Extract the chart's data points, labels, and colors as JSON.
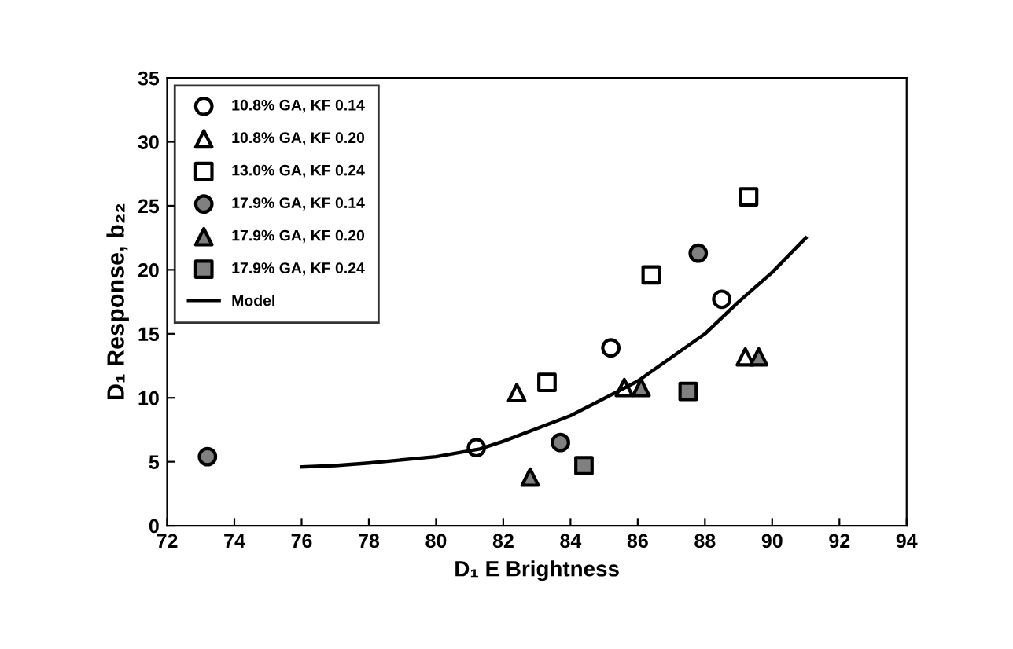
{
  "chart_data": {
    "type": "scatter",
    "xlabel": "D₁ E Brightness",
    "ylabel": "D₁ Response, b₂₂",
    "xlim": [
      72,
      94
    ],
    "xticks": [
      72,
      74,
      76,
      78,
      80,
      82,
      84,
      86,
      88,
      90,
      92,
      94
    ],
    "ylim": [
      0,
      35
    ],
    "yticks": [
      0,
      5,
      10,
      15,
      20,
      25,
      30,
      35
    ],
    "grid": false,
    "legend": "top left",
    "series": [
      {
        "name": "10.8% GA, KF 0.14",
        "marker": "circle",
        "color": "#000000",
        "x": [
          81.2,
          85.2,
          88.5
        ],
        "values": [
          6.1,
          13.9,
          17.7
        ]
      },
      {
        "name": "10.8% GA, KF 0.20",
        "marker": "triangle",
        "color": "#000000",
        "x": [
          82.4,
          85.6,
          89.2
        ],
        "values": [
          10.4,
          10.8,
          13.2
        ]
      },
      {
        "name": "13.0% GA, KF 0.24",
        "marker": "square",
        "color": "#000000",
        "x": [
          83.3,
          86.4,
          89.3
        ],
        "values": [
          11.2,
          19.6,
          25.7
        ]
      },
      {
        "name": "17.9% GA, KF 0.14",
        "marker": "circle",
        "color": "#808080",
        "x": [
          73.2,
          83.7,
          87.8
        ],
        "values": [
          5.4,
          6.5,
          21.3
        ]
      },
      {
        "name": "17.9% GA, KF 0.20",
        "marker": "triangle",
        "color": "#808080",
        "x": [
          82.8,
          86.1,
          89.6
        ],
        "values": [
          3.8,
          10.8,
          13.2
        ]
      },
      {
        "name": "17.9% GA, KF 0.24",
        "marker": "square",
        "color": "#808080",
        "x": [
          84.4,
          87.5
        ],
        "values": [
          4.7,
          10.5
        ]
      },
      {
        "name": "Model",
        "type": "line",
        "marker": "none",
        "line_style": "solid",
        "color": "#000000",
        "x": [
          76,
          77,
          78,
          80,
          81.3,
          82,
          84,
          86,
          88,
          89,
          90,
          91
        ],
        "values": [
          4.6,
          4.7,
          4.9,
          5.4,
          6.0,
          6.6,
          8.6,
          11.3,
          15.0,
          17.5,
          19.8,
          22.5
        ]
      }
    ]
  }
}
